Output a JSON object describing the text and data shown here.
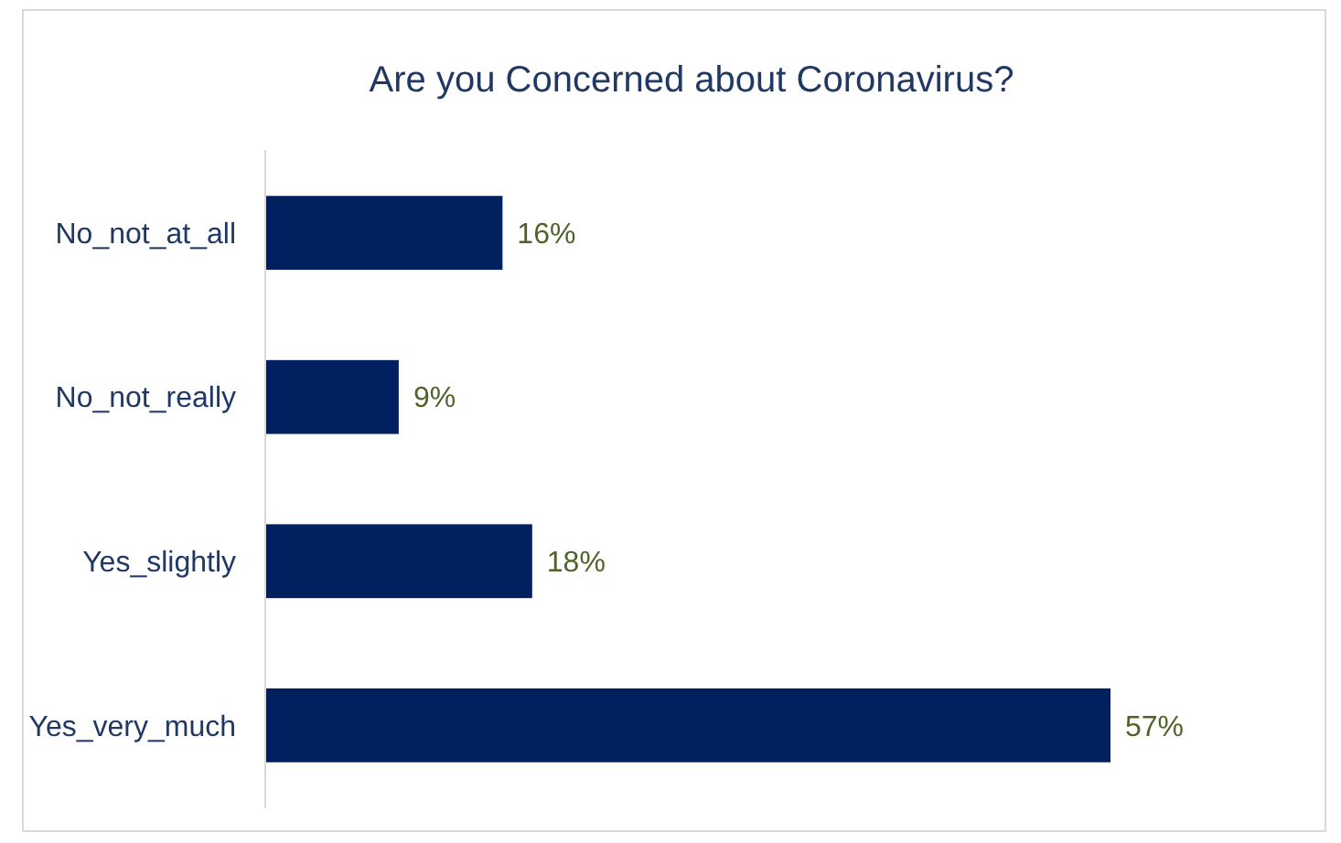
{
  "chart_data": {
    "type": "bar",
    "orientation": "horizontal",
    "title": "Are you Concerned about Coronavirus?",
    "categories": [
      "No_not_at_all",
      "No_not_really",
      "Yes_slightly",
      "Yes_very_much"
    ],
    "values": [
      16,
      9,
      18,
      57
    ],
    "color": "#002060",
    "value_labels": [
      "16%",
      "9%",
      "18%",
      "57%"
    ],
    "tick_labels": "y"
  }
}
